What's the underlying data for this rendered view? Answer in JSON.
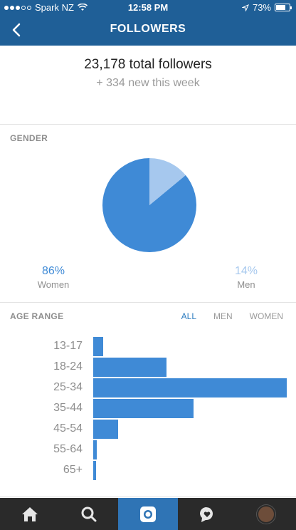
{
  "status_bar": {
    "carrier": "Spark NZ",
    "time": "12:58 PM",
    "battery": "73%",
    "battery_level": 0.73
  },
  "nav": {
    "title": "FOLLOWERS"
  },
  "summary": {
    "total": "23,178 total followers",
    "new_week": "+ 334 new this week"
  },
  "gender": {
    "section_title": "GENDER",
    "women": {
      "percent": "86%",
      "label": "Women",
      "value": 86
    },
    "men": {
      "percent": "14%",
      "label": "Men",
      "value": 14
    }
  },
  "age_range": {
    "section_title": "AGE RANGE",
    "tabs": [
      "ALL",
      "MEN",
      "WOMEN"
    ],
    "selected_tab": "ALL"
  },
  "chart_data": {
    "type": "bar",
    "categories": [
      "13-17",
      "18-24",
      "25-34",
      "35-44",
      "45-54",
      "55-64",
      "65+"
    ],
    "values": [
      5,
      38,
      100,
      52,
      13,
      2,
      1
    ]
  },
  "colors": {
    "header": "#1f5f97",
    "women": "#3f8ad6",
    "men": "#a6c8ee",
    "bar": "#3f8ad6",
    "tab_active": "#2f74b5"
  },
  "tabbar": {
    "items": [
      "home-icon",
      "search-icon",
      "camera-icon",
      "activity-icon",
      "profile-avatar"
    ],
    "active": "camera-icon"
  }
}
